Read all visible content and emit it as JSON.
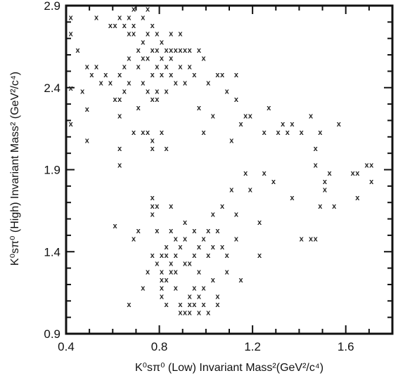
{
  "chart_data": {
    "type": "scatter",
    "title": "",
    "xlabel": "K⁰sπ⁰ (Low) Invariant Mass²(GeV²/c⁴)",
    "ylabel": "K⁰sπ⁰ (High) Invariant Mass² (GeV²/c⁴)",
    "xlim": [
      0.4,
      1.8
    ],
    "ylim": [
      0.9,
      2.9
    ],
    "xticks": [
      "0.4",
      "0.8",
      "1.2",
      "1.6"
    ],
    "yticks": [
      "0.9",
      "1.4",
      "1.9",
      "2.4",
      "2.9"
    ],
    "marker": "x",
    "grid": false,
    "series": [
      {
        "name": "",
        "points": [
          [
            0.42,
            2.83
          ],
          [
            0.42,
            2.73
          ],
          [
            0.42,
            2.4
          ],
          [
            0.42,
            2.18
          ],
          [
            0.45,
            2.63
          ],
          [
            0.47,
            2.38
          ],
          [
            0.49,
            2.27
          ],
          [
            0.49,
            2.08
          ],
          [
            0.49,
            2.53
          ],
          [
            0.51,
            2.48
          ],
          [
            0.53,
            2.53
          ],
          [
            0.53,
            2.83
          ],
          [
            0.55,
            2.43
          ],
          [
            0.57,
            2.48
          ],
          [
            0.59,
            2.78
          ],
          [
            0.59,
            2.43
          ],
          [
            0.61,
            2.78
          ],
          [
            0.61,
            2.33
          ],
          [
            0.63,
            2.83
          ],
          [
            0.63,
            2.48
          ],
          [
            0.63,
            2.33
          ],
          [
            0.63,
            2.23
          ],
          [
            0.63,
            2.03
          ],
          [
            0.63,
            1.93
          ],
          [
            0.65,
            2.78
          ],
          [
            0.65,
            2.53
          ],
          [
            0.65,
            2.38
          ],
          [
            0.67,
            2.83
          ],
          [
            0.67,
            2.73
          ],
          [
            0.67,
            2.58
          ],
          [
            0.67,
            2.43
          ],
          [
            0.69,
            2.88
          ],
          [
            0.69,
            2.78
          ],
          [
            0.69,
            2.73
          ],
          [
            0.69,
            2.13
          ],
          [
            0.71,
            2.63
          ],
          [
            0.71,
            2.53
          ],
          [
            0.71,
            2.28
          ],
          [
            0.73,
            2.83
          ],
          [
            0.73,
            2.68
          ],
          [
            0.73,
            2.58
          ],
          [
            0.73,
            2.43
          ],
          [
            0.73,
            2.13
          ],
          [
            0.75,
            2.88
          ],
          [
            0.75,
            2.73
          ],
          [
            0.75,
            2.58
          ],
          [
            0.75,
            2.38
          ],
          [
            0.75,
            2.13
          ],
          [
            0.77,
            2.78
          ],
          [
            0.77,
            2.63
          ],
          [
            0.77,
            2.48
          ],
          [
            0.77,
            2.33
          ],
          [
            0.77,
            2.08
          ],
          [
            0.77,
            2.03
          ],
          [
            0.79,
            2.73
          ],
          [
            0.79,
            2.63
          ],
          [
            0.79,
            2.53
          ],
          [
            0.79,
            2.38
          ],
          [
            0.79,
            2.33
          ],
          [
            0.81,
            2.68
          ],
          [
            0.81,
            2.58
          ],
          [
            0.81,
            2.48
          ],
          [
            0.81,
            2.13
          ],
          [
            0.83,
            2.63
          ],
          [
            0.83,
            2.53
          ],
          [
            0.83,
            2.38
          ],
          [
            0.83,
            2.03
          ],
          [
            0.85,
            2.73
          ],
          [
            0.85,
            2.63
          ],
          [
            0.85,
            2.58
          ],
          [
            0.85,
            2.48
          ],
          [
            0.87,
            2.63
          ],
          [
            0.87,
            2.43
          ],
          [
            0.89,
            2.73
          ],
          [
            0.89,
            2.63
          ],
          [
            0.89,
            2.53
          ],
          [
            0.91,
            2.63
          ],
          [
            0.91,
            2.43
          ],
          [
            0.93,
            2.63
          ],
          [
            0.93,
            2.53
          ],
          [
            0.95,
            2.48
          ],
          [
            0.97,
            2.63
          ],
          [
            0.97,
            2.28
          ],
          [
            0.99,
            2.58
          ],
          [
            0.99,
            2.13
          ],
          [
            1.01,
            2.43
          ],
          [
            1.03,
            2.23
          ],
          [
            1.05,
            2.48
          ],
          [
            1.07,
            2.48
          ],
          [
            1.09,
            2.38
          ],
          [
            1.11,
            2.08
          ],
          [
            1.13,
            2.33
          ],
          [
            1.13,
            2.48
          ],
          [
            1.15,
            2.18
          ],
          [
            1.17,
            2.23
          ],
          [
            1.19,
            2.23
          ],
          [
            1.25,
            2.13
          ],
          [
            1.27,
            2.28
          ],
          [
            1.31,
            2.13
          ],
          [
            1.33,
            2.18
          ],
          [
            1.35,
            2.13
          ],
          [
            1.37,
            2.18
          ],
          [
            1.41,
            2.13
          ],
          [
            1.45,
            2.23
          ],
          [
            1.47,
            2.03
          ],
          [
            1.47,
            1.93
          ],
          [
            1.49,
            2.13
          ],
          [
            1.51,
            1.83
          ],
          [
            1.53,
            1.88
          ],
          [
            1.57,
            2.18
          ],
          [
            1.63,
            1.88
          ],
          [
            1.65,
            1.88
          ],
          [
            1.69,
            1.93
          ],
          [
            1.71,
            1.93
          ],
          [
            1.71,
            1.83
          ],
          [
            1.65,
            1.73
          ],
          [
            0.67,
            1.08
          ],
          [
            0.69,
            1.48
          ],
          [
            0.71,
            1.53
          ],
          [
            0.61,
            1.56
          ],
          [
            0.77,
            1.73
          ],
          [
            0.77,
            1.68
          ],
          [
            0.77,
            1.63
          ],
          [
            0.79,
            1.68
          ],
          [
            0.79,
            1.53
          ],
          [
            0.79,
            1.33
          ],
          [
            0.81,
            1.38
          ],
          [
            0.81,
            1.28
          ],
          [
            0.81,
            1.23
          ],
          [
            0.81,
            1.18
          ],
          [
            0.81,
            1.13
          ],
          [
            0.83,
            1.43
          ],
          [
            0.83,
            1.38
          ],
          [
            0.83,
            1.23
          ],
          [
            0.83,
            1.08
          ],
          [
            0.85,
            1.68
          ],
          [
            0.85,
            1.53
          ],
          [
            0.85,
            1.33
          ],
          [
            0.85,
            1.28
          ],
          [
            0.87,
            1.38
          ],
          [
            0.87,
            1.28
          ],
          [
            0.87,
            1.18
          ],
          [
            0.89,
            1.43
          ],
          [
            0.89,
            1.08
          ],
          [
            0.91,
            1.58
          ],
          [
            0.91,
            1.48
          ],
          [
            0.91,
            1.33
          ],
          [
            0.93,
            1.33
          ],
          [
            0.93,
            1.13
          ],
          [
            0.93,
            1.08
          ],
          [
            0.95,
            1.53
          ],
          [
            0.95,
            1.38
          ],
          [
            0.95,
            1.18
          ],
          [
            0.95,
            1.08
          ],
          [
            0.97,
            1.43
          ],
          [
            0.97,
            1.28
          ],
          [
            0.97,
            1.13
          ],
          [
            0.99,
            1.48
          ],
          [
            0.99,
            1.18
          ],
          [
            0.99,
            1.08
          ],
          [
            1.01,
            1.53
          ],
          [
            1.01,
            1.38
          ],
          [
            1.03,
            1.63
          ],
          [
            1.03,
            1.43
          ],
          [
            1.03,
            1.23
          ],
          [
            1.05,
            1.53
          ],
          [
            1.05,
            1.13
          ],
          [
            1.07,
            1.68
          ],
          [
            1.07,
            1.43
          ],
          [
            1.09,
            1.38
          ],
          [
            1.09,
            1.28
          ],
          [
            1.11,
            1.78
          ],
          [
            1.13,
            1.63
          ],
          [
            1.13,
            1.48
          ],
          [
            1.15,
            1.23
          ],
          [
            1.17,
            1.88
          ],
          [
            1.19,
            1.78
          ],
          [
            1.23,
            1.58
          ],
          [
            1.23,
            1.38
          ],
          [
            1.25,
            1.88
          ],
          [
            1.29,
            1.83
          ],
          [
            1.37,
            1.73
          ],
          [
            1.41,
            1.48
          ],
          [
            1.45,
            1.48
          ],
          [
            1.47,
            1.48
          ],
          [
            1.49,
            1.68
          ],
          [
            1.51,
            1.78
          ],
          [
            1.55,
            1.68
          ],
          [
            0.73,
            1.18
          ],
          [
            0.75,
            1.28
          ],
          [
            0.77,
            1.38
          ],
          [
            0.89,
            1.03
          ],
          [
            0.91,
            1.03
          ],
          [
            0.93,
            1.03
          ],
          [
            0.97,
            1.03
          ],
          [
            1.01,
            1.03
          ],
          [
            1.05,
            1.08
          ],
          [
            0.87,
            1.48
          ]
        ]
      }
    ]
  }
}
